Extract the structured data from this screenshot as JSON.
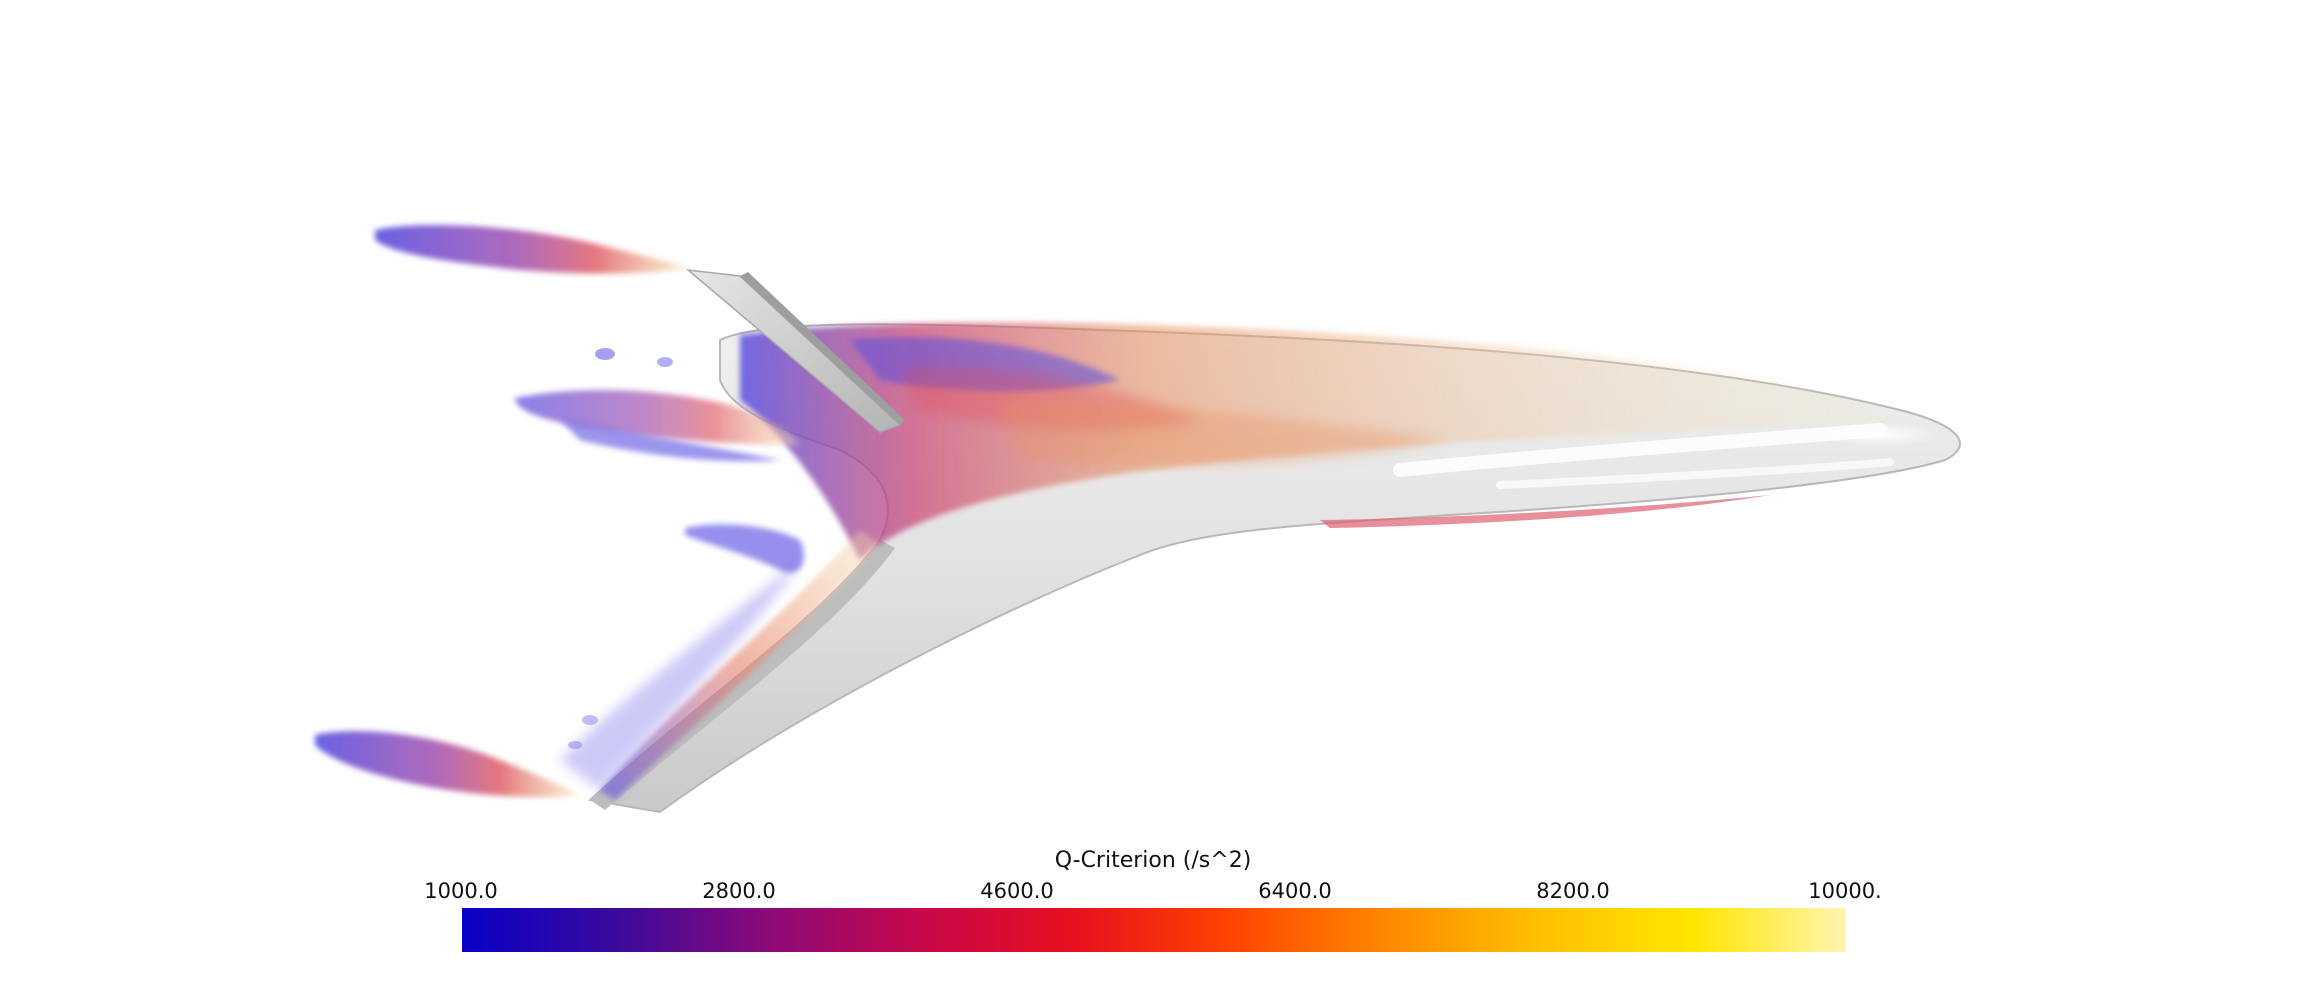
{
  "colorbar": {
    "title": "Q-Criterion (/s^2)",
    "ticks": [
      "1000.0",
      "2800.0",
      "4600.0",
      "6400.0",
      "8200.0",
      "10000."
    ],
    "colors": [
      "#0a00c8",
      "#3a0a9c",
      "#8c0a78",
      "#c8084a",
      "#e8101e",
      "#ff4400",
      "#ff8800",
      "#ffc000",
      "#ffe600",
      "#fff4b0"
    ]
  },
  "scene": {
    "surface_color": "#d8d8d8",
    "vortex_low_color": "#5a50e0",
    "vortex_mid_color": "#e0505a",
    "vortex_high_color": "#f6e6b0"
  }
}
